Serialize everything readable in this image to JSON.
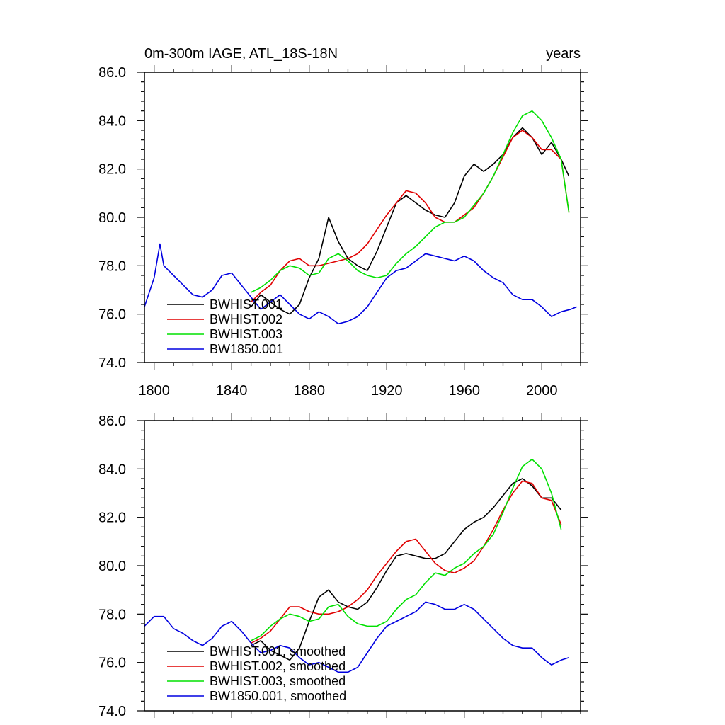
{
  "colors": {
    "BWHIST.001": "#000000",
    "BWHIST.002": "#e00000",
    "BWHIST.003": "#00e000",
    "BW1850.001": "#0000e0"
  },
  "chart_data": [
    {
      "type": "line",
      "title": "0m-300m IAGE, ATL_18S-18N",
      "units": "years",
      "xlim": [
        1795,
        2020
      ],
      "ylim": [
        74.0,
        86.0
      ],
      "xticks": [
        1800,
        1840,
        1880,
        1920,
        1960,
        2000
      ],
      "xtick_labels": [
        "1800",
        "1840",
        "1880",
        "1920",
        "1960",
        "2000"
      ],
      "yticks": [
        74.0,
        76.0,
        78.0,
        80.0,
        82.0,
        84.0,
        86.0
      ],
      "ytick_labels": [
        "74.0",
        "76.0",
        "78.0",
        "80.0",
        "82.0",
        "84.0",
        "86.0"
      ],
      "legend_position": "lower-left",
      "series": [
        {
          "name": "BWHIST.001",
          "label": "BWHIST.001",
          "x": [
            1850,
            1855,
            1860,
            1865,
            1870,
            1875,
            1880,
            1885,
            1890,
            1895,
            1900,
            1905,
            1910,
            1915,
            1920,
            1925,
            1930,
            1935,
            1940,
            1945,
            1950,
            1955,
            1960,
            1965,
            1970,
            1975,
            1980,
            1985,
            1990,
            1995,
            2000,
            2005,
            2010,
            2014
          ],
          "values": [
            76.3,
            76.8,
            76.5,
            76.2,
            76.0,
            76.4,
            77.5,
            78.3,
            80.0,
            79.0,
            78.3,
            78.0,
            77.8,
            78.6,
            79.6,
            80.6,
            80.9,
            80.6,
            80.3,
            80.1,
            80.0,
            80.6,
            81.7,
            82.2,
            81.9,
            82.2,
            82.6,
            83.3,
            83.7,
            83.3,
            82.6,
            83.1,
            82.4,
            81.7
          ]
        },
        {
          "name": "BWHIST.002",
          "label": "BWHIST.002",
          "x": [
            1850,
            1855,
            1860,
            1865,
            1870,
            1875,
            1880,
            1885,
            1890,
            1895,
            1900,
            1905,
            1910,
            1915,
            1920,
            1925,
            1930,
            1935,
            1940,
            1945,
            1950,
            1955,
            1960,
            1965,
            1970,
            1975,
            1980,
            1985,
            1990,
            1995,
            2000,
            2005,
            2010,
            2014
          ],
          "values": [
            76.5,
            76.9,
            77.2,
            77.8,
            78.2,
            78.3,
            78.0,
            78.0,
            78.1,
            78.2,
            78.3,
            78.5,
            78.9,
            79.5,
            80.1,
            80.6,
            81.1,
            81.0,
            80.6,
            80.0,
            79.8,
            79.8,
            80.1,
            80.4,
            81.0,
            81.7,
            82.5,
            83.3,
            83.6,
            83.3,
            82.8,
            82.8,
            82.4,
            80.2
          ]
        },
        {
          "name": "BWHIST.003",
          "label": "BWHIST.003",
          "x": [
            1850,
            1855,
            1860,
            1865,
            1870,
            1875,
            1880,
            1885,
            1890,
            1895,
            1900,
            1905,
            1910,
            1915,
            1920,
            1925,
            1930,
            1935,
            1940,
            1945,
            1950,
            1955,
            1960,
            1965,
            1970,
            1975,
            1980,
            1985,
            1990,
            1995,
            2000,
            2005,
            2010,
            2014
          ],
          "values": [
            76.9,
            77.1,
            77.4,
            77.8,
            78.0,
            77.9,
            77.6,
            77.7,
            78.3,
            78.5,
            78.2,
            77.8,
            77.6,
            77.5,
            77.6,
            78.1,
            78.5,
            78.8,
            79.2,
            79.6,
            79.8,
            79.8,
            80.0,
            80.5,
            81.0,
            81.7,
            82.6,
            83.5,
            84.2,
            84.4,
            84.0,
            83.3,
            82.4,
            80.2
          ]
        },
        {
          "name": "BW1850.001",
          "label": "BW1850.001",
          "x": [
            1795,
            1800,
            1803,
            1805,
            1810,
            1815,
            1820,
            1825,
            1830,
            1835,
            1840,
            1845,
            1850,
            1855,
            1860,
            1865,
            1870,
            1875,
            1880,
            1885,
            1890,
            1895,
            1900,
            1905,
            1910,
            1915,
            1920,
            1925,
            1930,
            1935,
            1940,
            1945,
            1950,
            1955,
            1960,
            1965,
            1970,
            1975,
            1980,
            1985,
            1990,
            1995,
            2000,
            2005,
            2010,
            2015,
            2018
          ],
          "values": [
            76.3,
            77.5,
            78.9,
            78.0,
            77.6,
            77.2,
            76.8,
            76.7,
            77.0,
            77.6,
            77.7,
            77.2,
            76.7,
            76.2,
            76.5,
            76.8,
            76.4,
            76.0,
            75.8,
            76.1,
            75.9,
            75.6,
            75.7,
            75.9,
            76.3,
            76.9,
            77.5,
            77.8,
            77.9,
            78.2,
            78.5,
            78.4,
            78.3,
            78.2,
            78.4,
            78.2,
            77.8,
            77.5,
            77.3,
            76.8,
            76.6,
            76.6,
            76.3,
            75.9,
            76.1,
            76.2,
            76.3
          ]
        }
      ]
    },
    {
      "type": "line",
      "title": "",
      "xlim": [
        1795,
        2020
      ],
      "ylim": [
        74.0,
        86.0
      ],
      "yticks": [
        74.0,
        76.0,
        78.0,
        80.0,
        82.0,
        84.0,
        86.0
      ],
      "ytick_labels": [
        "74.0",
        "76.0",
        "78.0",
        "80.0",
        "82.0",
        "84.0",
        "86.0"
      ],
      "legend_position": "lower-left",
      "series": [
        {
          "name": "BWHIST.001",
          "label": "BWHIST.001, smoothed",
          "x": [
            1850,
            1855,
            1860,
            1865,
            1870,
            1875,
            1880,
            1885,
            1890,
            1895,
            1900,
            1905,
            1910,
            1915,
            1920,
            1925,
            1930,
            1935,
            1940,
            1945,
            1950,
            1955,
            1960,
            1965,
            1970,
            1975,
            1980,
            1985,
            1990,
            1995,
            2000,
            2005,
            2010
          ],
          "values": [
            76.7,
            76.9,
            76.5,
            76.3,
            76.1,
            76.6,
            77.7,
            78.7,
            79.0,
            78.5,
            78.3,
            78.2,
            78.5,
            79.1,
            79.8,
            80.4,
            80.5,
            80.4,
            80.3,
            80.3,
            80.5,
            81.0,
            81.5,
            81.8,
            82.0,
            82.4,
            82.9,
            83.4,
            83.6,
            83.3,
            82.8,
            82.8,
            82.3
          ]
        },
        {
          "name": "BWHIST.002",
          "label": "BWHIST.002, smoothed",
          "x": [
            1850,
            1855,
            1860,
            1865,
            1870,
            1875,
            1880,
            1885,
            1890,
            1895,
            1900,
            1905,
            1910,
            1915,
            1920,
            1925,
            1930,
            1935,
            1940,
            1945,
            1950,
            1955,
            1960,
            1965,
            1970,
            1975,
            1980,
            1985,
            1990,
            1995,
            2000,
            2005,
            2010
          ],
          "values": [
            76.8,
            77.0,
            77.3,
            77.8,
            78.3,
            78.3,
            78.1,
            78.0,
            78.0,
            78.1,
            78.3,
            78.6,
            79.0,
            79.6,
            80.1,
            80.6,
            81.0,
            81.1,
            80.6,
            80.1,
            79.8,
            79.7,
            79.9,
            80.2,
            80.8,
            81.5,
            82.3,
            83.0,
            83.5,
            83.4,
            82.8,
            82.7,
            81.7
          ]
        },
        {
          "name": "BWHIST.003",
          "label": "BWHIST.003, smoothed",
          "x": [
            1850,
            1855,
            1860,
            1865,
            1870,
            1875,
            1880,
            1885,
            1890,
            1895,
            1900,
            1905,
            1910,
            1915,
            1920,
            1925,
            1930,
            1935,
            1940,
            1945,
            1950,
            1955,
            1960,
            1965,
            1970,
            1975,
            1980,
            1985,
            1990,
            1995,
            2000,
            2005,
            2010
          ],
          "values": [
            76.9,
            77.1,
            77.5,
            77.8,
            78.0,
            77.9,
            77.7,
            77.8,
            78.3,
            78.4,
            77.9,
            77.6,
            77.5,
            77.5,
            77.7,
            78.2,
            78.6,
            78.8,
            79.3,
            79.7,
            79.6,
            79.9,
            80.1,
            80.5,
            80.8,
            81.3,
            82.2,
            83.2,
            84.1,
            84.4,
            84.0,
            83.0,
            81.5
          ]
        },
        {
          "name": "BW1850.001",
          "label": "BW1850.001, smoothed",
          "x": [
            1795,
            1800,
            1805,
            1810,
            1815,
            1820,
            1825,
            1830,
            1835,
            1840,
            1845,
            1850,
            1855,
            1860,
            1865,
            1870,
            1875,
            1880,
            1885,
            1890,
            1895,
            1900,
            1905,
            1910,
            1915,
            1920,
            1925,
            1930,
            1935,
            1940,
            1945,
            1950,
            1955,
            1960,
            1965,
            1970,
            1975,
            1980,
            1985,
            1990,
            1995,
            2000,
            2005,
            2010,
            2014
          ],
          "values": [
            77.5,
            77.9,
            77.9,
            77.4,
            77.2,
            76.9,
            76.7,
            77.0,
            77.5,
            77.7,
            77.3,
            76.8,
            76.4,
            76.5,
            76.7,
            76.6,
            76.2,
            75.9,
            76.0,
            75.8,
            75.6,
            75.6,
            75.8,
            76.4,
            77.0,
            77.5,
            77.7,
            77.9,
            78.1,
            78.5,
            78.4,
            78.2,
            78.2,
            78.4,
            78.2,
            77.8,
            77.4,
            77.0,
            76.7,
            76.6,
            76.6,
            76.2,
            75.9,
            76.1,
            76.2
          ]
        }
      ]
    }
  ]
}
